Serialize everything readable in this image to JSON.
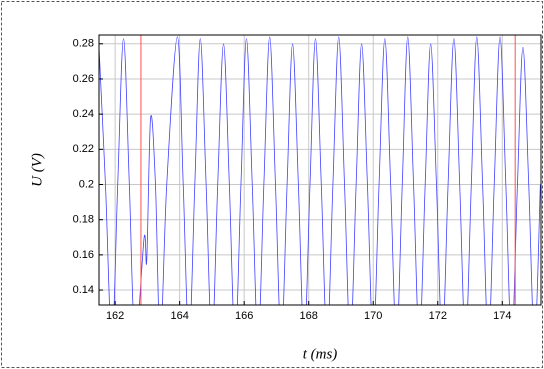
{
  "chart_data": {
    "type": "line",
    "xlabel": "t (ms)",
    "ylabel": "U (V)",
    "xlim": [
      161.5,
      175.2
    ],
    "ylim": [
      0.1315,
      0.285
    ],
    "xticks": [
      162,
      164,
      166,
      168,
      170,
      172,
      174
    ],
    "yticks": [
      0.14,
      0.16,
      0.18,
      0.2,
      0.22,
      0.24,
      0.26,
      0.28
    ],
    "grid": true,
    "series": [
      {
        "color": "#4040ff",
        "x": [
          161.5,
          161.7,
          161.9,
          162.08,
          162.26,
          162.44,
          162.62,
          162.9,
          162.98,
          163.1,
          163.25,
          163.4,
          163.6,
          163.93,
          164.11,
          164.29,
          164.47,
          164.64,
          164.82,
          165.0,
          165.18,
          165.36,
          165.54,
          165.72,
          165.9,
          166.07,
          166.25,
          166.43,
          166.61,
          166.79,
          166.97,
          167.15,
          167.33,
          167.5,
          167.68,
          167.86,
          168.04,
          168.21,
          168.39,
          168.57,
          168.75,
          168.93,
          169.11,
          169.29,
          169.47,
          169.64,
          169.82,
          170.0,
          170.18,
          170.36,
          170.54,
          170.72,
          170.9,
          171.07,
          171.25,
          171.43,
          171.61,
          171.78,
          171.96,
          172.14,
          172.32,
          172.5,
          172.68,
          172.86,
          173.04,
          173.21,
          173.39,
          173.57,
          173.75,
          173.93,
          174.11,
          174.29,
          174.47,
          174.64,
          174.82,
          175.0,
          175.18
        ],
        "values": [
          0.278,
          0.2,
          0.11,
          0.2,
          0.283,
          0.2,
          0.11,
          0.17,
          0.157,
          0.238,
          0.2,
          0.11,
          0.2,
          0.284,
          0.2,
          0.11,
          0.2,
          0.283,
          0.2,
          0.11,
          0.2,
          0.28,
          0.2,
          0.11,
          0.2,
          0.283,
          0.2,
          0.11,
          0.2,
          0.284,
          0.2,
          0.11,
          0.2,
          0.28,
          0.2,
          0.11,
          0.2,
          0.283,
          0.2,
          0.11,
          0.2,
          0.284,
          0.2,
          0.11,
          0.2,
          0.28,
          0.2,
          0.11,
          0.2,
          0.283,
          0.2,
          0.11,
          0.2,
          0.284,
          0.2,
          0.11,
          0.2,
          0.28,
          0.2,
          0.11,
          0.2,
          0.283,
          0.2,
          0.11,
          0.2,
          0.284,
          0.2,
          0.11,
          0.2,
          0.284,
          0.2,
          0.11,
          0.2,
          0.278,
          0.2,
          0.11,
          0.2
        ]
      }
    ],
    "markers": {
      "color": "#ff5050",
      "x": [
        162.8,
        174.4
      ]
    }
  }
}
